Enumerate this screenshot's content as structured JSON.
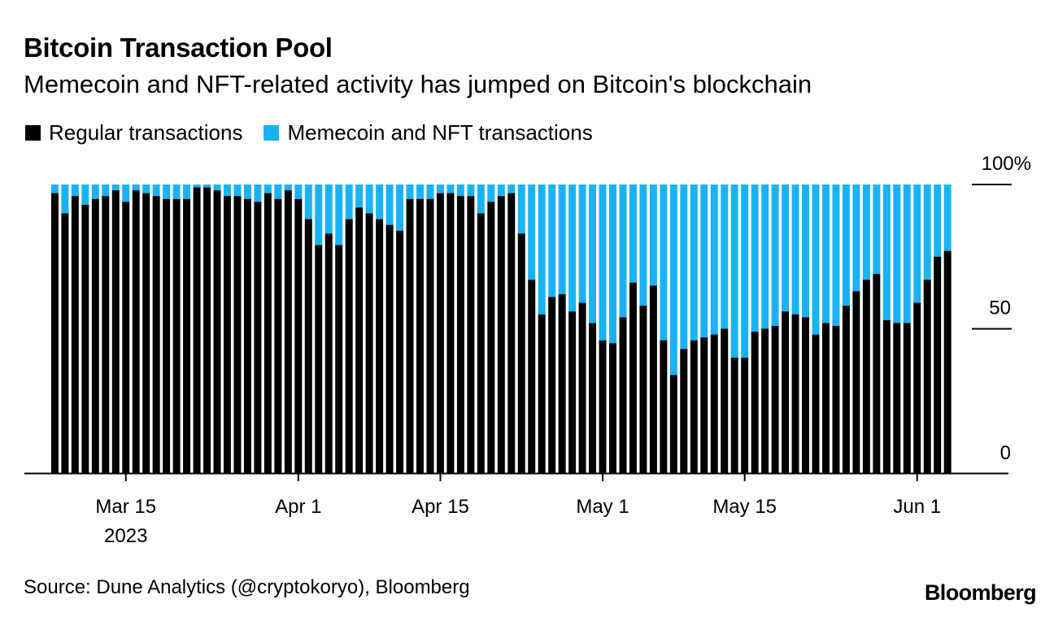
{
  "header": {
    "title": "Bitcoin Transaction Pool",
    "subtitle": "Memecoin and NFT-related activity has jumped on Bitcoin's blockchain"
  },
  "footer": {
    "source": "Source: Dune Analytics (@cryptokoryo), Bloomberg",
    "logo": "Bloomberg"
  },
  "colors": {
    "regular": "#000000",
    "memecoin_nft": "#1ab2f5",
    "axis": "#000000"
  },
  "chart_data": {
    "type": "bar",
    "stacked": true,
    "title": "Bitcoin Transaction Pool",
    "subtitle": "Memecoin and NFT-related activity has jumped on Bitcoin's blockchain",
    "legend_position": "top-left",
    "grid": false,
    "y_axis_position": "right",
    "ylim": [
      0,
      100
    ],
    "y_ticks": [
      {
        "value": 0,
        "label": "0"
      },
      {
        "value": 50,
        "label": "50"
      },
      {
        "value": 100,
        "label": "100%"
      }
    ],
    "x_ticks": [
      {
        "date": "2023-03-15",
        "label": "Mar 15",
        "sublabel": "2023"
      },
      {
        "date": "2023-04-01",
        "label": "Apr 1",
        "sublabel": ""
      },
      {
        "date": "2023-04-15",
        "label": "Apr 15",
        "sublabel": ""
      },
      {
        "date": "2023-05-01",
        "label": "May 1",
        "sublabel": ""
      },
      {
        "date": "2023-05-15",
        "label": "May 15",
        "sublabel": ""
      },
      {
        "date": "2023-06-01",
        "label": "Jun 1",
        "sublabel": ""
      }
    ],
    "x_range": [
      "2023-03-05",
      "2023-06-10"
    ],
    "x_start": "2023-03-08",
    "series": [
      {
        "name": "Regular transactions",
        "values": [
          97,
          90,
          96,
          93,
          95,
          96,
          98,
          94,
          98,
          97,
          96,
          95,
          95,
          95,
          99,
          99,
          98,
          96,
          96,
          95,
          94,
          97,
          95,
          98,
          95,
          88,
          79,
          83,
          79,
          88,
          92,
          90,
          88,
          86,
          84,
          95,
          95,
          95,
          97,
          97,
          96,
          96,
          90,
          94,
          96,
          97,
          83,
          67,
          55,
          61,
          62,
          56,
          59,
          52,
          46,
          45,
          54,
          66,
          58,
          65,
          46,
          34,
          43,
          46,
          47,
          48,
          50,
          40,
          40,
          49,
          50,
          51,
          56,
          55,
          54,
          48,
          52,
          51,
          58,
          63,
          67,
          69,
          53,
          52,
          52,
          59,
          67,
          75,
          77
        ]
      },
      {
        "name": "Memecoin and NFT transactions",
        "values": [
          3,
          10,
          4,
          7,
          5,
          4,
          2,
          6,
          2,
          3,
          4,
          5,
          5,
          5,
          1,
          1,
          2,
          4,
          4,
          5,
          6,
          3,
          5,
          2,
          5,
          12,
          21,
          17,
          21,
          12,
          8,
          10,
          12,
          14,
          16,
          5,
          5,
          5,
          3,
          3,
          4,
          4,
          10,
          6,
          4,
          3,
          17,
          33,
          45,
          39,
          38,
          44,
          41,
          48,
          54,
          55,
          46,
          34,
          42,
          35,
          54,
          66,
          57,
          54,
          53,
          52,
          50,
          60,
          60,
          51,
          50,
          49,
          44,
          45,
          46,
          52,
          48,
          49,
          42,
          37,
          33,
          31,
          47,
          48,
          48,
          41,
          33,
          25,
          23
        ]
      }
    ]
  }
}
